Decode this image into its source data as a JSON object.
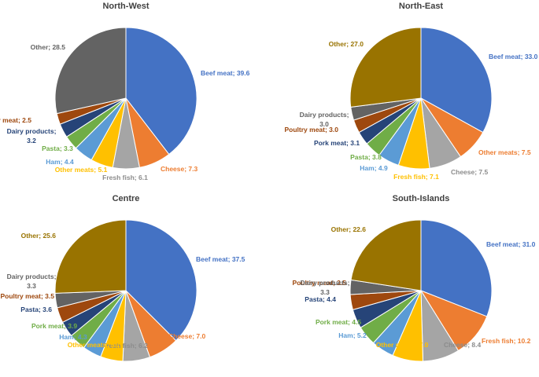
{
  "chart_data": [
    {
      "type": "pie",
      "title": "North-West",
      "series": [
        {
          "name": "Beef meat",
          "value": 39.6,
          "color": "#4472C4"
        },
        {
          "name": "Cheese",
          "value": 7.3,
          "color": "#ED7D31"
        },
        {
          "name": "Fresh fish",
          "value": 6.1,
          "color": "#A5A5A5"
        },
        {
          "name": "Other meats",
          "value": 5.1,
          "color": "#FFC000"
        },
        {
          "name": "Ham",
          "value": 4.4,
          "color": "#5B9BD5"
        },
        {
          "name": "Pasta",
          "value": 3.3,
          "color": "#70AD47"
        },
        {
          "name": "Dairy products",
          "value": 3.2,
          "color": "#264478"
        },
        {
          "name": "Poultry meat",
          "value": 2.5,
          "color": "#9E480E"
        },
        {
          "name": "Other",
          "value": 28.5,
          "color": "#636363"
        }
      ]
    },
    {
      "type": "pie",
      "title": "North-East",
      "series": [
        {
          "name": "Beef meat",
          "value": 33.0,
          "color": "#4472C4"
        },
        {
          "name": "Other meats",
          "value": 7.5,
          "color": "#ED7D31"
        },
        {
          "name": "Cheese",
          "value": 7.5,
          "color": "#A5A5A5"
        },
        {
          "name": "Fresh fish",
          "value": 7.1,
          "color": "#FFC000"
        },
        {
          "name": "Ham",
          "value": 4.9,
          "color": "#5B9BD5"
        },
        {
          "name": "Pasta",
          "value": 3.8,
          "color": "#70AD47"
        },
        {
          "name": "Pork meat",
          "value": 3.1,
          "color": "#264478"
        },
        {
          "name": "Poultry meat",
          "value": 3.0,
          "color": "#9E480E"
        },
        {
          "name": "Dairy products",
          "value": 3.0,
          "color": "#636363"
        },
        {
          "name": "Other",
          "value": 27.0,
          "color": "#997300"
        }
      ]
    },
    {
      "type": "pie",
      "title": "Centre",
      "series": [
        {
          "name": "Beef meat",
          "value": 37.5,
          "color": "#4472C4"
        },
        {
          "name": "Cheese",
          "value": 7.0,
          "color": "#ED7D31"
        },
        {
          "name": "Fresh fish",
          "value": 6.2,
          "color": "#A5A5A5"
        },
        {
          "name": "Other meats",
          "value": 5.1,
          "color": "#FFC000"
        },
        {
          "name": "Ham",
          "value": 4.3,
          "color": "#5B9BD5"
        },
        {
          "name": "Pork meat",
          "value": 3.9,
          "color": "#70AD47"
        },
        {
          "name": "Pasta",
          "value": 3.6,
          "color": "#264478"
        },
        {
          "name": "Poultry meat",
          "value": 3.5,
          "color": "#9E480E"
        },
        {
          "name": "Dairy products",
          "value": 3.3,
          "color": "#636363"
        },
        {
          "name": "Other",
          "value": 25.6,
          "color": "#997300"
        }
      ]
    },
    {
      "type": "pie",
      "title": "South-Islands",
      "series": [
        {
          "name": "Beef meat",
          "value": 31.0,
          "color": "#4472C4"
        },
        {
          "name": "Fresh fish",
          "value": 10.2,
          "color": "#ED7D31"
        },
        {
          "name": "Cheese",
          "value": 8.4,
          "color": "#A5A5A5"
        },
        {
          "name": "Other meats",
          "value": 7.0,
          "color": "#FFC000"
        },
        {
          "name": "Ham",
          "value": 5.2,
          "color": "#5B9BD5"
        },
        {
          "name": "Pork meat",
          "value": 4.5,
          "color": "#70AD47"
        },
        {
          "name": "Pasta",
          "value": 4.4,
          "color": "#264478"
        },
        {
          "name": "Poultry meat",
          "value": 3.5,
          "color": "#9E480E"
        },
        {
          "name": "Dairy products",
          "value": 3.3,
          "color": "#636363"
        },
        {
          "name": "Other",
          "value": 22.6,
          "color": "#997300"
        }
      ]
    }
  ]
}
